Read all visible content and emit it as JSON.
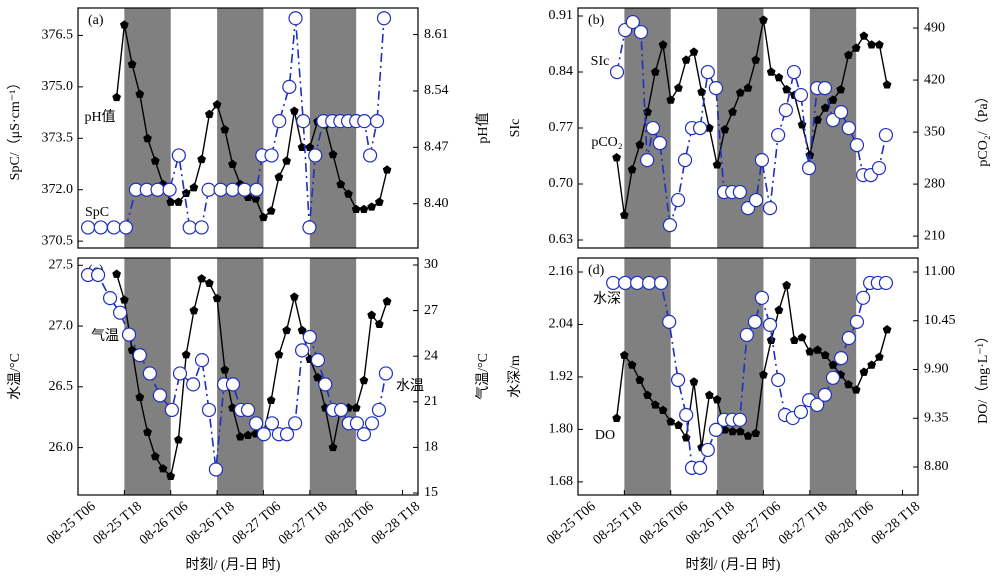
{
  "chart_data": [
    {
      "type": "line",
      "title": "(a)",
      "y_label": "SpC/（μS·cm⁻¹）",
      "y2_label": "pH值",
      "xlim": [
        0,
        88
      ],
      "shaded_intervals": [
        [
          12,
          24
        ],
        [
          36,
          48
        ],
        [
          60,
          72
        ]
      ],
      "ylim": [
        370.3,
        377.3
      ],
      "yticks": [
        {
          "value": 370.5,
          "label": "370.5"
        },
        {
          "value": 372,
          "label": "372.0"
        },
        373.5,
        {
          "value": 375,
          "label": "375.0"
        },
        376.5
      ],
      "y2lim": [
        8.345,
        8.643
      ],
      "y2ticks": [
        {
          "value": 8.4,
          "label": "8.40"
        },
        8.47,
        8.54,
        8.61
      ],
      "series": [
        {
          "name": "pH值",
          "color": "#000000",
          "axis": "y2",
          "marker": "pentagon",
          "line_style": "solid",
          "x": [
            10,
            12,
            14,
            16,
            18,
            20,
            22,
            24,
            26,
            28,
            30,
            32,
            34,
            36,
            38,
            40,
            42,
            44,
            46,
            48,
            50,
            52,
            54,
            56,
            58,
            60,
            62,
            64,
            66,
            68,
            70,
            72,
            74,
            76,
            78,
            80
          ],
          "values": [
            8.532,
            8.622,
            8.573,
            8.536,
            8.481,
            8.453,
            8.424,
            8.402,
            8.402,
            8.413,
            8.42,
            8.455,
            8.511,
            8.523,
            8.492,
            8.449,
            8.424,
            8.408,
            8.406,
            8.383,
            8.391,
            8.433,
            8.453,
            8.515,
            8.47,
            8.47,
            8.502,
            8.498,
            8.461,
            8.424,
            8.412,
            8.393,
            8.393,
            8.396,
            8.402,
            8.442
          ]
        },
        {
          "name": "SpC",
          "color": "#1f2fbf",
          "axis": "y",
          "marker": "circle",
          "line_style": "dashdot",
          "x": [
            2.6,
            5.9,
            9.3,
            12.4,
            15.0,
            17.8,
            20.6,
            23.7,
            26.1,
            28.9,
            32.0,
            33.8,
            36.9,
            40.0,
            43.1,
            46.2,
            47.7,
            50.1,
            52.1,
            54.7,
            56.3,
            58.3,
            59.9,
            61.4,
            63.5,
            65.8,
            67.9,
            69.9,
            72.0,
            74.1,
            75.6,
            77.4,
            79.2
          ],
          "values": [
            370.9,
            370.9,
            370.9,
            370.9,
            372.0,
            372.0,
            372.0,
            372.0,
            373.0,
            370.9,
            370.9,
            372.0,
            372.0,
            372.0,
            372.0,
            372.0,
            373.0,
            373.0,
            374.0,
            375.0,
            377.0,
            374.0,
            370.9,
            373.0,
            374.0,
            374.0,
            374.0,
            374.0,
            374.0,
            374.0,
            373.0,
            374.0,
            377.0
          ]
        }
      ]
    },
    {
      "type": "line",
      "title": "(b)",
      "y_label": "SIc",
      "y2_label": "pCO₂/（Pa）",
      "xlim": [
        0,
        88
      ],
      "shaded_intervals": [
        [
          12,
          24
        ],
        [
          36,
          48
        ],
        [
          60,
          72
        ]
      ],
      "ylim": [
        0.62,
        0.92
      ],
      "yticks": [
        0.63,
        {
          "value": 0.7,
          "label": "0.70"
        },
        0.77,
        0.84,
        0.91
      ],
      "y2lim": [
        194,
        517
      ],
      "y2ticks": [
        210,
        280,
        350,
        420,
        490
      ],
      "series": [
        {
          "name": "SIc",
          "color": "#000000",
          "axis": "y",
          "marker": "pentagon",
          "line_style": "solid",
          "x": [
            10,
            12,
            14,
            16,
            18,
            20,
            22,
            24,
            26,
            28,
            30,
            32,
            34,
            36,
            38,
            40,
            42,
            44,
            46,
            48,
            50,
            52,
            54,
            56,
            58,
            60,
            62,
            64,
            66,
            68,
            70,
            72,
            74,
            76,
            78,
            80
          ],
          "values": [
            0.733,
            0.661,
            0.718,
            0.749,
            0.79,
            0.84,
            0.874,
            0.805,
            0.82,
            0.855,
            0.865,
            0.815,
            0.77,
            0.724,
            0.768,
            0.79,
            0.814,
            0.82,
            0.855,
            0.905,
            0.84,
            0.833,
            0.818,
            0.811,
            0.774,
            0.736,
            0.78,
            0.795,
            0.805,
            0.818,
            0.861,
            0.87,
            0.885,
            0.874,
            0.874,
            0.824
          ]
        },
        {
          "name": "pCO₂",
          "color": "#1f2fbf",
          "axis": "y2",
          "marker": "circle",
          "line_style": "dashdot",
          "x": [
            10.1,
            12.2,
            14.2,
            16.3,
            17.9,
            19.4,
            21.2,
            23.8,
            25.9,
            27.7,
            29.5,
            31.6,
            33.6,
            35.7,
            37.8,
            39.9,
            41.9,
            44.0,
            46.1,
            47.6,
            49.7,
            51.8,
            53.8,
            55.9,
            57.7,
            59.8,
            61.9,
            63.9,
            66.0,
            68.1,
            70.1,
            72.2,
            73.8,
            75.8,
            77.9,
            79.7
          ],
          "values": [
            430.8,
            487.3,
            498.1,
            484.6,
            312.3,
            355.4,
            335.2,
            224.8,
            258.5,
            312.3,
            355.4,
            355.4,
            430.8,
            409.2,
            269.3,
            269.3,
            269.3,
            247.7,
            258.5,
            312.3,
            247.7,
            346.0,
            379.6,
            430.8,
            399.8,
            301.6,
            409.2,
            409.2,
            366.2,
            376.9,
            355.4,
            332.5,
            292.1,
            292.1,
            301.6,
            346.0
          ]
        }
      ]
    },
    {
      "type": "line",
      "title": "(c)",
      "y_label": "水温/°C",
      "y2_label": "气温/°C",
      "x_label": "时刻/ (月-日 时)",
      "xlim": [
        0,
        88
      ],
      "shaded_intervals": [
        [
          12,
          24
        ],
        [
          36,
          48
        ],
        [
          60,
          72
        ]
      ],
      "xticks": [
        {
          "value": 0,
          "label": "08-25 T06"
        },
        {
          "value": 12,
          "label": "08-25 T18"
        },
        {
          "value": 24,
          "label": "08-26 T06"
        },
        {
          "value": 36,
          "label": "08-26 T18"
        },
        {
          "value": 48,
          "label": "08-27 T06"
        },
        {
          "value": 60,
          "label": "08-27 T18"
        },
        {
          "value": 72,
          "label": "08-28 T06"
        },
        {
          "value": 84,
          "label": "08-28 T18"
        }
      ],
      "ylim": [
        25.61,
        27.56
      ],
      "yticks": [
        {
          "value": 26,
          "label": "26.0"
        },
        26.5,
        {
          "value": 27,
          "label": "27.0"
        },
        27.5
      ],
      "y2lim": [
        14.87,
        30.46
      ],
      "y2ticks": [
        15,
        18,
        21,
        24,
        27,
        30
      ],
      "series": [
        {
          "name": "气温",
          "color": "#000000",
          "axis": "y2",
          "marker": "pentagon",
          "line_style": "solid",
          "x": [
            10,
            12,
            14,
            16,
            18,
            20,
            22,
            24,
            26,
            28,
            30,
            32,
            34,
            36,
            38,
            40,
            42,
            44,
            46,
            48,
            50,
            52,
            54,
            56,
            58,
            60,
            62,
            64,
            66,
            68,
            70,
            72,
            74,
            76,
            78,
            80
          ],
          "values": [
            29.4,
            27.7,
            24.4,
            21.3,
            19.0,
            17.4,
            16.6,
            16.1,
            18.5,
            24.1,
            27.0,
            29.1,
            28.8,
            27.8,
            23.1,
            20.6,
            18.7,
            18.8,
            18.9,
            18.9,
            21.1,
            24.1,
            25.7,
            27.9,
            25.7,
            23.8,
            22.6,
            20.6,
            18.0,
            20.6,
            20.6,
            20.6,
            22.4,
            26.7,
            26.1,
            27.6
          ]
        },
        {
          "name": "水温",
          "color": "#1f2fbf",
          "axis": "y",
          "marker": "circle",
          "line_style": "dashdot",
          "x": [
            2.6,
            5.2,
            8.3,
            10.9,
            13.2,
            16.0,
            18.6,
            21.2,
            24.3,
            26.4,
            29.8,
            32.1,
            33.9,
            35.7,
            37.8,
            40.1,
            42.2,
            44.0,
            46.1,
            48.1,
            50.2,
            52.0,
            54.1,
            56.2,
            58.0,
            60.0,
            62.1,
            64.0,
            66.0,
            68.1,
            70.1,
            72.2,
            74.0,
            76.1,
            77.9,
            79.7
          ],
          "values": [
            27.42,
            27.42,
            27.23,
            27.11,
            26.93,
            26.76,
            26.61,
            26.43,
            26.31,
            26.61,
            26.52,
            26.72,
            26.31,
            25.82,
            26.52,
            26.52,
            26.31,
            26.31,
            26.2,
            26.11,
            26.2,
            26.11,
            26.11,
            26.2,
            26.8,
            26.91,
            26.72,
            26.52,
            26.31,
            26.31,
            26.2,
            26.2,
            26.11,
            26.2,
            26.31,
            26.61
          ]
        }
      ]
    },
    {
      "type": "line",
      "title": "(d)",
      "y_label": "水深/m",
      "y2_label": "DO/（mg·L⁻¹）",
      "x_label": "时刻/ (月-日 时)",
      "xlim": [
        0,
        88
      ],
      "shaded_intervals": [
        [
          12,
          24
        ],
        [
          36,
          48
        ],
        [
          60,
          72
        ]
      ],
      "xticks": [
        {
          "value": 0,
          "label": "08-25 T06"
        },
        {
          "value": 12,
          "label": "08-25 T18"
        },
        {
          "value": 24,
          "label": "08-26 T06"
        },
        {
          "value": 36,
          "label": "08-26 T18"
        },
        {
          "value": 48,
          "label": "08-27 T06"
        },
        {
          "value": 60,
          "label": "08-27 T18"
        },
        {
          "value": 72,
          "label": "08-28 T06"
        },
        {
          "value": 84,
          "label": "08-28 T18"
        }
      ],
      "ylim": [
        1.65,
        2.192
      ],
      "yticks": [
        1.68,
        {
          "value": 1.8,
          "label": "1.80"
        },
        1.92,
        2.04,
        2.16
      ],
      "y2lim": [
        8.484,
        11.158
      ],
      "y2ticks": [
        {
          "value": 8.8,
          "label": "8.80"
        },
        9.35,
        {
          "value": 9.9,
          "label": "9.90"
        },
        10.45,
        {
          "value": 11,
          "label": "11.00"
        }
      ],
      "series": [
        {
          "name": "DO",
          "color": "#000000",
          "axis": "y2",
          "marker": "pentagon",
          "line_style": "solid",
          "x": [
            10,
            12,
            14,
            16,
            18,
            20,
            22,
            24,
            26,
            28,
            30,
            32,
            34,
            36,
            38,
            40,
            42,
            44,
            46,
            48,
            50,
            52,
            54,
            56,
            58,
            60,
            62,
            64,
            66,
            68,
            70,
            72,
            74,
            76,
            78,
            80
          ],
          "values": [
            9.35,
            10.06,
            9.95,
            9.78,
            9.61,
            9.5,
            9.44,
            9.31,
            9.27,
            9.13,
            9.76,
            9.02,
            9.61,
            9.56,
            9.22,
            9.2,
            9.2,
            9.15,
            9.18,
            9.84,
            10.23,
            10.57,
            10.85,
            10.23,
            10.26,
            10.1,
            10.12,
            10.06,
            9.95,
            9.84,
            9.73,
            9.67,
            9.87,
            9.95,
            10.04,
            10.35
          ]
        },
        {
          "name": "水深",
          "color": "#1f2fbf",
          "axis": "y",
          "marker": "circle",
          "line_style": "dashdot",
          "x": [
            9.1,
            12.2,
            15.3,
            18.4,
            21.5,
            23.6,
            25.9,
            28.0,
            29.5,
            31.6,
            33.6,
            35.7,
            37.8,
            39.9,
            41.9,
            43.7,
            45.8,
            47.6,
            49.7,
            51.8,
            53.6,
            55.6,
            57.7,
            59.8,
            61.9,
            63.9,
            66.0,
            68.1,
            70.1,
            72.2,
            73.8,
            75.6,
            77.6,
            79.7
          ],
          "values": [
            2.135,
            2.135,
            2.135,
            2.135,
            2.135,
            2.046,
            1.913,
            1.833,
            1.712,
            1.712,
            1.753,
            1.799,
            1.822,
            1.822,
            1.822,
            2.016,
            2.046,
            2.101,
            2.039,
            1.913,
            1.833,
            1.826,
            1.84,
            1.867,
            1.856,
            1.879,
            1.918,
            1.963,
            2.009,
            2.046,
            2.101,
            2.135,
            2.135,
            2.135
          ]
        }
      ]
    }
  ]
}
